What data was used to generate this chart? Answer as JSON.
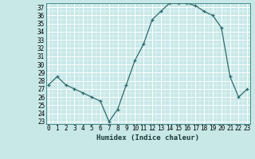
{
  "x": [
    0,
    1,
    2,
    3,
    4,
    5,
    6,
    7,
    8,
    9,
    10,
    11,
    12,
    13,
    14,
    15,
    16,
    17,
    18,
    19,
    20,
    21,
    22,
    23
  ],
  "y": [
    27.5,
    28.5,
    27.5,
    27.0,
    26.5,
    26.0,
    25.5,
    23.0,
    24.5,
    27.5,
    30.5,
    32.5,
    35.5,
    36.5,
    37.5,
    37.5,
    37.5,
    37.2,
    36.5,
    36.0,
    34.5,
    28.5,
    26.0,
    27.0
  ],
  "line_color": "#2e6b6b",
  "marker": "P",
  "marker_color": "#2e6b6b",
  "bg_color": "#c8e8e8",
  "grid_major_color": "#aad4d4",
  "grid_minor_color": "#b8dcdc",
  "xlabel": "Humidex (Indice chaleur)",
  "ylim_min": 23,
  "ylim_max": 38,
  "xlim_min": -0.3,
  "xlim_max": 23.3,
  "ytick_values": [
    23,
    24,
    25,
    26,
    27,
    28,
    29,
    30,
    31,
    32,
    33,
    34,
    35,
    36,
    37
  ],
  "tick_fontsize": 5.5,
  "xlabel_fontsize": 6.5
}
